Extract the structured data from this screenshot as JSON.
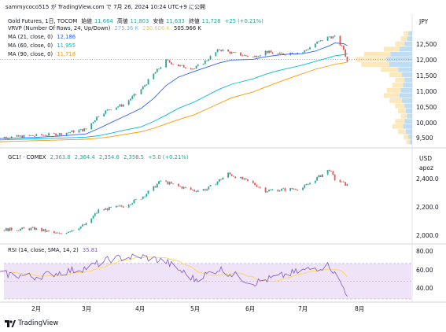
{
  "header": {
    "text": "sammycoco515 が TradingView.com で 7月 26, 2024 10:24 UTC+9 に公開"
  },
  "main": {
    "title": "Gold Futures, 1日, TOCOM",
    "ohlc": {
      "o_label": "始値",
      "o": "11,664",
      "h_label": "高値",
      "h": "11,803",
      "l_label": "安値",
      "l": "11,633",
      "c_label": "終値",
      "c": "11,728",
      "chg": "+25 (+0.21%)"
    },
    "currency": "JPY",
    "vrvp": {
      "label": "VRVP (Number Of Rows, 24, Up/Down)",
      "v1": "275.36 K",
      "v2": "230.606 K",
      "v3": "505.966 K"
    },
    "ma21": {
      "label": "MA (21, close, 0)",
      "value": "12,186"
    },
    "ma60": {
      "label": "MA (60, close, 0)",
      "value": "11,955"
    },
    "ma90": {
      "label": "MA (90, close, 0)",
      "value": "11,718"
    },
    "yticks": [
      "12,500",
      "12,000",
      "11,500",
      "11,000",
      "10,500",
      "10,000",
      "9,500"
    ]
  },
  "gc": {
    "title": "GC1! · COMEX",
    "o": "2,363.8",
    "h": "2,364.4",
    "l": "2,354.6",
    "c": "2,358.5",
    "chg": "+5.0 (+0.21%)",
    "currency": "USD",
    "unit": "apoz",
    "yticks": [
      "2,400.0",
      "2,200.0",
      "2,000.0"
    ]
  },
  "rsi": {
    "label": "RSI (14, close, SMA, 14, 2)",
    "value": "35.81",
    "yticks": [
      "80.00",
      "60.00",
      "40.00"
    ]
  },
  "xaxis": [
    "2月",
    "3月",
    "4月",
    "5月",
    "6月",
    "7月",
    "8月"
  ],
  "footer": {
    "brand": "TradingView"
  },
  "colors": {
    "up": "#26a69a",
    "down": "#ef5350",
    "ma21": "#2962ff",
    "ma60": "#00bcd4",
    "ma90": "#ff9800",
    "rsi": "#7e57c2",
    "rsi_ma": "#ffd54f"
  },
  "chart_data": [
    {
      "type": "line",
      "title": "Gold Futures, 1日, TOCOM",
      "x": [
        "2024-01-05",
        "2024-01-19",
        "2024-02-01",
        "2024-02-15",
        "2024-03-01",
        "2024-03-08",
        "2024-03-15",
        "2024-03-22",
        "2024-04-01",
        "2024-04-08",
        "2024-04-15",
        "2024-04-22",
        "2024-05-01",
        "2024-05-08",
        "2024-05-15",
        "2024-05-22",
        "2024-06-03",
        "2024-06-10",
        "2024-06-17",
        "2024-06-24",
        "2024-07-01",
        "2024-07-08",
        "2024-07-16",
        "2024-07-19",
        "2024-07-24",
        "2024-07-26"
      ],
      "series": [
        {
          "name": "close",
          "values": [
            9590,
            9610,
            9650,
            9700,
            9830,
            10230,
            10420,
            10520,
            10950,
            11380,
            11760,
            11620,
            11540,
            11780,
            12080,
            11980,
            11860,
            12020,
            11940,
            11980,
            12000,
            12240,
            12440,
            12420,
            12080,
            11728
          ]
        },
        {
          "name": "MA (21, close, 0)",
          "values": [
            9560,
            9580,
            9600,
            9640,
            9700,
            9850,
            10020,
            10180,
            10420,
            10700,
            11060,
            11300,
            11460,
            11580,
            11700,
            11780,
            11800,
            11870,
            11920,
            11950,
            11960,
            12030,
            12180,
            12260,
            12240,
            12186
          ]
        },
        {
          "name": "MA (60, close, 0)",
          "values": [
            9520,
            9540,
            9560,
            9580,
            9610,
            9650,
            9720,
            9800,
            9900,
            10050,
            10230,
            10420,
            10600,
            10780,
            10960,
            11100,
            11250,
            11380,
            11480,
            11560,
            11640,
            11740,
            11850,
            11900,
            11930,
            11955
          ]
        },
        {
          "name": "MA (90, close, 0)",
          "values": [
            9470,
            9490,
            9510,
            9530,
            9550,
            9580,
            9620,
            9680,
            9760,
            9860,
            9980,
            10100,
            10240,
            10400,
            10560,
            10720,
            10880,
            11020,
            11150,
            11280,
            11400,
            11520,
            11620,
            11660,
            11700,
            11718
          ]
        }
      ],
      "ylim": [
        9350,
        12850
      ]
    },
    {
      "type": "line",
      "title": "GC1! · COMEX",
      "x": [
        "2024-01-05",
        "2024-02-01",
        "2024-02-15",
        "2024-03-01",
        "2024-03-08",
        "2024-03-22",
        "2024-04-01",
        "2024-04-08",
        "2024-04-12",
        "2024-04-22",
        "2024-05-01",
        "2024-05-08",
        "2024-05-20",
        "2024-06-03",
        "2024-06-10",
        "2024-06-24",
        "2024-07-01",
        "2024-07-16",
        "2024-07-19",
        "2024-07-26"
      ],
      "values": [
        2040,
        2050,
        2010,
        2080,
        2180,
        2210,
        2270,
        2340,
        2390,
        2350,
        2320,
        2330,
        2440,
        2370,
        2320,
        2330,
        2340,
        2470,
        2400,
        2358.5
      ],
      "ylim": [
        1970,
        2500
      ]
    },
    {
      "type": "line",
      "title": "RSI (14, close, SMA, 14, 2)",
      "x": [
        "2024-01-05",
        "2024-02-01",
        "2024-03-01",
        "2024-03-15",
        "2024-04-01",
        "2024-04-15",
        "2024-05-01",
        "2024-05-15",
        "2024-06-03",
        "2024-06-17",
        "2024-07-01",
        "2024-07-16",
        "2024-07-26"
      ],
      "series": [
        {
          "name": "RSI",
          "values": [
            60,
            55,
            65,
            75,
            78,
            72,
            52,
            64,
            48,
            55,
            62,
            68,
            35.81
          ]
        }
      ],
      "ylim": [
        30,
        85
      ],
      "bands": [
        70,
        30
      ]
    }
  ]
}
